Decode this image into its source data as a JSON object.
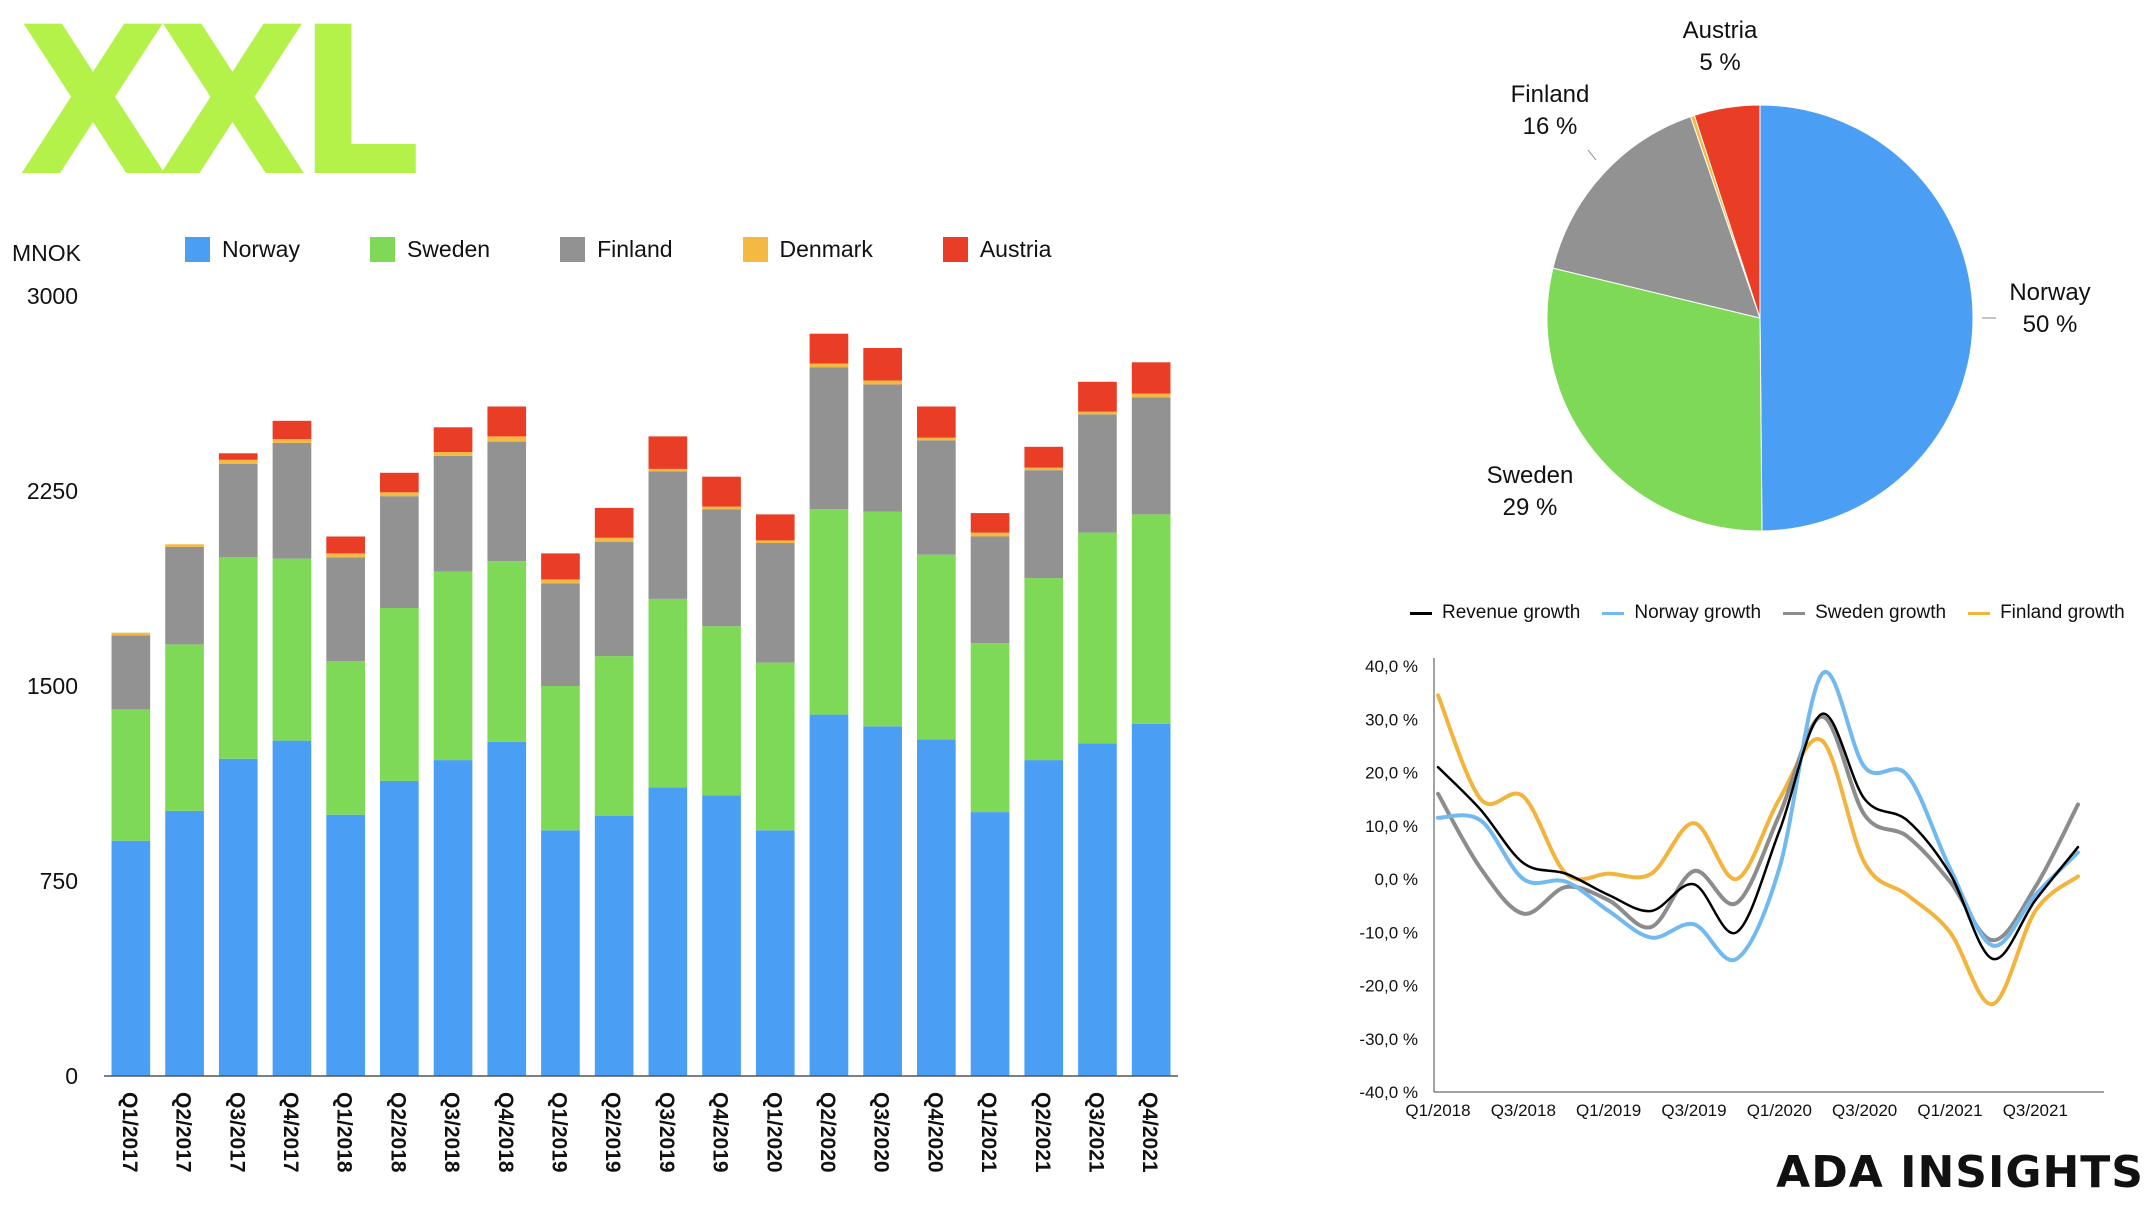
{
  "logo_text": "XXL",
  "brand_text": "ADA INSIGHTS",
  "colors": {
    "Norway": "#4a9ff5",
    "Sweden": "#7ed957",
    "Finland": "#929292",
    "Denmark": "#f4b942",
    "Austria": "#ea3d25",
    "Revenue growth": "#000000",
    "Norway growth": "#72b9f0",
    "Sweden growth": "#8c8c8c",
    "Finland growth": "#f2b43c"
  },
  "chart_data": [
    {
      "type": "bar",
      "stacked": true,
      "unit_label": "MNOK",
      "title": "",
      "categories": [
        "Q1/2017",
        "Q2/2017",
        "Q3/2017",
        "Q4/2017",
        "Q1/2018",
        "Q2/2018",
        "Q3/2018",
        "Q4/2018",
        "Q1/2019",
        "Q2/2019",
        "Q3/2019",
        "Q4/2019",
        "Q1/2020",
        "Q2/2020",
        "Q3/2020",
        "Q4/2020",
        "Q1/2021",
        "Q2/2021",
        "Q3/2021",
        "Q4/2021"
      ],
      "series": [
        {
          "name": "Norway",
          "values": [
            905,
            1020,
            1220,
            1290,
            1005,
            1135,
            1215,
            1285,
            945,
            1000,
            1110,
            1080,
            945,
            1390,
            1345,
            1295,
            1015,
            1215,
            1280,
            1355
          ]
        },
        {
          "name": "Sweden",
          "values": [
            505,
            640,
            775,
            700,
            590,
            665,
            725,
            695,
            555,
            615,
            725,
            650,
            645,
            790,
            825,
            710,
            650,
            700,
            810,
            805
          ]
        },
        {
          "name": "Finland",
          "values": [
            285,
            375,
            360,
            445,
            400,
            430,
            445,
            460,
            395,
            440,
            490,
            450,
            460,
            545,
            490,
            440,
            410,
            415,
            455,
            450
          ]
        },
        {
          "name": "Denmark",
          "values": [
            10,
            10,
            15,
            15,
            15,
            15,
            15,
            20,
            15,
            15,
            10,
            10,
            10,
            15,
            15,
            10,
            15,
            10,
            10,
            15
          ]
        },
        {
          "name": "Austria",
          "values": [
            0,
            0,
            25,
            70,
            65,
            75,
            95,
            115,
            100,
            115,
            125,
            115,
            100,
            115,
            125,
            120,
            75,
            80,
            115,
            120
          ]
        }
      ],
      "ylim": [
        0,
        3000
      ],
      "yticks": [
        "0",
        "750",
        "1500",
        "2250",
        "3000"
      ],
      "legend_position": "top"
    },
    {
      "type": "pie",
      "slices": [
        {
          "name": "Norway",
          "value": 50,
          "label": "Norway",
          "pct": "50 %"
        },
        {
          "name": "Sweden",
          "value": 29,
          "label": "Sweden",
          "pct": "29 %"
        },
        {
          "name": "Finland",
          "value": 16,
          "label": "Finland",
          "pct": "16 %"
        },
        {
          "name": "Denmark",
          "value": 0.3
        },
        {
          "name": "Austria",
          "value": 5,
          "label": "Austria",
          "pct": "5 %"
        }
      ]
    },
    {
      "type": "line",
      "x": [
        "Q1/2018",
        "Q2/2018",
        "Q3/2018",
        "Q4/2018",
        "Q1/2019",
        "Q2/2019",
        "Q3/2019",
        "Q4/2019",
        "Q1/2020",
        "Q2/2020",
        "Q3/2020",
        "Q4/2020",
        "Q1/2021",
        "Q2/2021",
        "Q3/2021",
        "Q4/2021"
      ],
      "xtick_labels": [
        "Q1/2018",
        "Q3/2018",
        "Q1/2019",
        "Q3/2019",
        "Q1/2020",
        "Q3/2020",
        "Q1/2021",
        "Q3/2021"
      ],
      "series": [
        {
          "name": "Revenue growth",
          "values": [
            21,
            13,
            3,
            1,
            -3,
            -6,
            -1,
            -10,
            9,
            31,
            15,
            11,
            1,
            -15,
            -4,
            6
          ]
        },
        {
          "name": "Norway growth",
          "values": [
            11.5,
            11,
            0,
            -0.5,
            -6,
            -11,
            -8.5,
            -15,
            2,
            38.5,
            21,
            19.5,
            2,
            -12.5,
            -3,
            5
          ]
        },
        {
          "name": "Sweden growth",
          "values": [
            16,
            2,
            -6.5,
            -1.5,
            -4,
            -9,
            1.5,
            -4.5,
            12,
            30.5,
            12,
            8,
            -0.5,
            -11.5,
            -1.5,
            14
          ]
        },
        {
          "name": "Finland growth",
          "values": [
            34.5,
            15,
            15.5,
            1,
            1,
            1,
            10.5,
            0,
            15,
            26,
            3,
            -3,
            -10,
            -23.5,
            -6,
            0.5
          ]
        }
      ],
      "ylim": [
        -40,
        40
      ],
      "yticks": [
        "-40,0 %",
        "-30,0 %",
        "-20,0 %",
        "-10,0 %",
        "0,0 %",
        "10,0 %",
        "20,0 %",
        "30,0 %",
        "40,0 %"
      ],
      "legend_position": "top"
    }
  ]
}
